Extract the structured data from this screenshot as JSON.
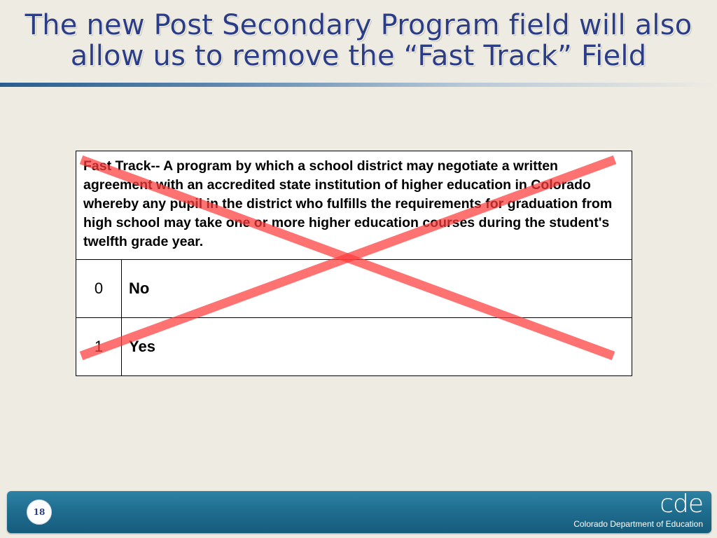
{
  "slide": {
    "title_line1": "The new Post Secondary Program field will also",
    "title_line2": "allow us to remove the “Fast Track” Field",
    "strike_color": "#ff3b3b"
  },
  "table": {
    "definition": "Fast Track-- A program by which a school district may negotiate a written agreement with an accredited state institution of higher education in Colorado whereby any pupil in the district who fulfills the requirements for graduation from high school may take one or more higher education courses during the student's twelfth grade year.",
    "rows": [
      {
        "code": "0",
        "label": "No"
      },
      {
        "code": "1",
        "label": "Yes"
      }
    ]
  },
  "footer": {
    "page_number": "18",
    "logo_text": "cde",
    "org_name": "Colorado Department of Education",
    "bar_color": "#1f6e90"
  }
}
